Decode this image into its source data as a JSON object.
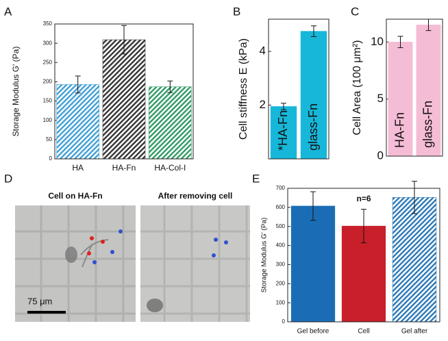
{
  "panel_labels": [
    "A",
    "B",
    "C",
    "D",
    "E"
  ],
  "chart_data": [
    {
      "type": "bar",
      "y_label": "Storage Modulus G' (Pa)",
      "categories": [
        "HA",
        "HA-Fn",
        "HA-Col-I"
      ],
      "values": [
        193,
        309,
        187
      ],
      "errors": [
        22,
        37,
        15
      ],
      "colors": [
        "#3f9fd6",
        "#333333",
        "#2f9a62"
      ],
      "hatched": [
        true,
        true,
        true
      ],
      "ylim": [
        0,
        350
      ],
      "yticks": [
        0,
        50,
        100,
        150,
        200,
        250,
        300,
        350
      ]
    },
    {
      "type": "bar",
      "y_label": "Cell stiffness E (kPa)",
      "categories": [
        "HA-Fn",
        "glass-Fn"
      ],
      "annotations": [
        "*",
        null
      ],
      "values": [
        1.95,
        4.75
      ],
      "errors": [
        0.12,
        0.2
      ],
      "colors": [
        "#17b7d9",
        "#17b7d9"
      ],
      "hatched": [
        false,
        false
      ],
      "ylim": [
        0,
        5.2
      ],
      "yticks": [
        2,
        4
      ]
    },
    {
      "type": "bar",
      "y_label": "Cell Area (100 μm²)",
      "categories": [
        "HA-Fn",
        "glass-Fn"
      ],
      "values": [
        10.0,
        11.5
      ],
      "errors": [
        0.5,
        0.5
      ],
      "colors": [
        "#f5bdd5",
        "#f5bdd5"
      ],
      "hatched": [
        false,
        false
      ],
      "ylim": [
        0,
        12
      ],
      "yticks": [
        0,
        5,
        10
      ]
    },
    {
      "type": "bar",
      "y_label": "Storage Modulus G' (Pa)",
      "annotation": "n=6",
      "categories": [
        "Gel before",
        "Cell",
        "Gel after"
      ],
      "values": [
        607,
        502,
        652
      ],
      "errors": [
        75,
        88,
        85
      ],
      "colors": [
        "#1a6db5",
        "#c81f2a",
        "#2a78b8"
      ],
      "hatched": [
        false,
        false,
        true
      ],
      "ylim": [
        0,
        700
      ],
      "yticks": [
        0,
        100,
        200,
        300,
        400,
        500,
        600,
        700
      ]
    }
  ],
  "images": [
    {
      "title": "Cell on HA-Fn"
    },
    {
      "title": "After removing cell"
    }
  ],
  "scale_bar": "75 μm"
}
